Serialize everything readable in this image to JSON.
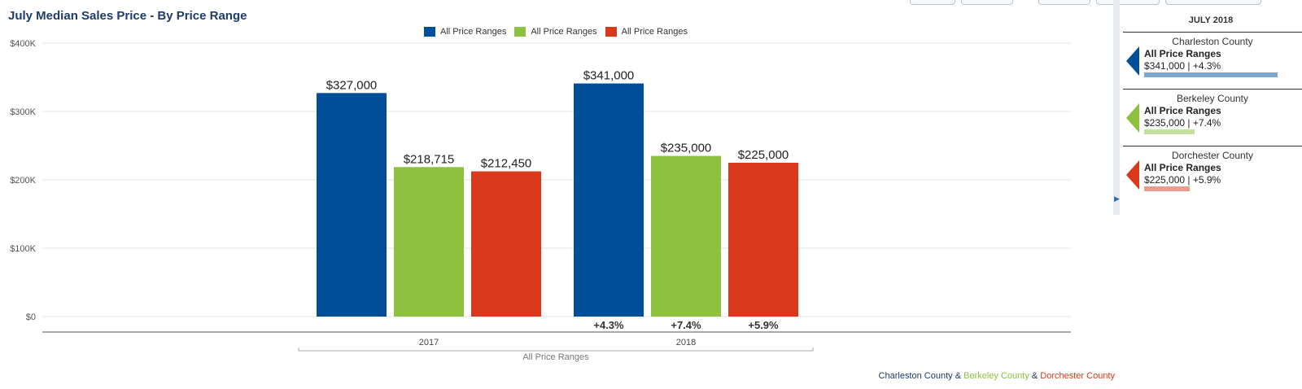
{
  "chart_data": {
    "type": "bar",
    "title": "July Median Sales Price - By Price Range",
    "categories": [
      "2017",
      "2018"
    ],
    "group_label": "All Price Ranges",
    "series": [
      {
        "name": "All Price Ranges",
        "color": "#004f98",
        "values": [
          327000,
          341000
        ],
        "labels": [
          "$327,000",
          "$341,000"
        ],
        "change": "+4.3%"
      },
      {
        "name": "All Price Ranges",
        "color": "#8dc13f",
        "values": [
          218715,
          235000
        ],
        "labels": [
          "$218,715",
          "$235,000"
        ],
        "change": "+7.4%"
      },
      {
        "name": "All Price Ranges",
        "color": "#d8391a",
        "values": [
          212450,
          225000
        ],
        "labels": [
          "$212,450",
          "$225,000"
        ],
        "change": "+5.9%"
      }
    ],
    "ylim": [
      0,
      400000
    ],
    "yticks": [
      0,
      100000,
      200000,
      300000,
      400000
    ],
    "ytick_labels": [
      "$0",
      "$100K",
      "$200K",
      "$300K",
      "$400K"
    ],
    "grid": true,
    "legend_position": "top-center"
  },
  "sidebar": {
    "month": "JULY 2018",
    "counties": [
      {
        "name": "Charleston County",
        "range": "All Price Ranges",
        "value": "$341,000 | +4.3%",
        "color": "#004f98",
        "bar_color": "#7ea7c9",
        "bar_fraction": 1.0
      },
      {
        "name": "Berkeley County",
        "range": "All Price Ranges",
        "value": "$235,000 | +7.4%",
        "color": "#8dc13f",
        "bar_color": "#c4e09c",
        "bar_fraction": 0.38
      },
      {
        "name": "Dorchester County",
        "range": "All Price Ranges",
        "value": "$225,000 | +5.9%",
        "color": "#d8391a",
        "bar_color": "#ec9c8d",
        "bar_fraction": 0.34
      }
    ]
  },
  "footer": {
    "a": "Charleston County",
    "sep1": " & ",
    "b": "Berkeley County",
    "sep2": " & ",
    "c": "Dorchester County",
    "colors": [
      "#1f3b66",
      "#8dc13f",
      "#d8391a"
    ]
  }
}
